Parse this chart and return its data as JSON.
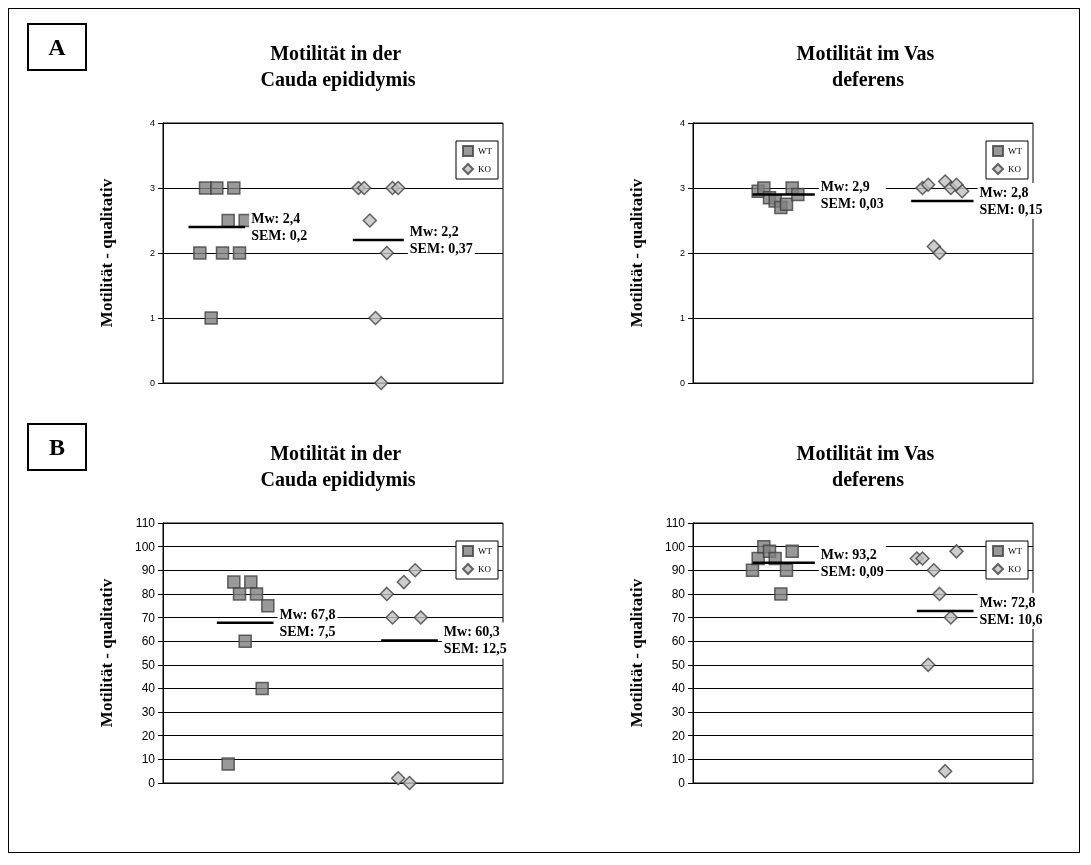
{
  "chart_data": [
    {
      "type": "scatter",
      "title": "Motilität in der Cauda epididymis",
      "ylabel": "Motilität - qualitativ",
      "categories": [
        null,
        null,
        null,
        null,
        null,
        null,
        null,
        null,
        null,
        null,
        null,
        null,
        null,
        null,
        null,
        null,
        null,
        null,
        null,
        null,
        null,
        null,
        null,
        null,
        null,
        null,
        null,
        null,
        null,
        null,
        null,
        null,
        null,
        null,
        null,
        null,
        null,
        null,
        null,
        null,
        null,
        null,
        null,
        null,
        null,
        null,
        null,
        null,
        null,
        null,
        null,
        null,
        null,
        null,
        null,
        null,
        null,
        null,
        null,
        null
      ],
      "ylim": [
        0,
        4
      ],
      "yticks": [
        0,
        1,
        2,
        3,
        4
      ],
      "grid": "y",
      "legend": "top right",
      "series": [
        {
          "name": "WT",
          "color": "#808080",
          "marker": "square",
          "values": [
            null,
            null,
            null,
            null,
            null,
            null,
            2,
            3,
            1,
            3,
            2,
            2.5,
            3,
            2,
            2.5,
            null,
            null,
            null,
            null,
            null,
            null,
            null,
            null,
            null,
            null,
            null,
            null,
            null,
            null,
            null,
            null,
            null,
            null,
            null,
            null,
            null,
            null,
            null,
            null,
            null,
            null,
            null,
            null,
            null,
            null,
            null,
            null,
            null,
            null,
            null,
            null,
            null,
            null,
            null,
            null,
            null,
            null,
            null,
            null,
            null
          ]
        },
        {
          "name": "KO",
          "color": "#c0c0c0",
          "marker": "diamond",
          "values": [
            null,
            null,
            null,
            null,
            null,
            null,
            null,
            null,
            null,
            null,
            null,
            null,
            null,
            null,
            null,
            null,
            null,
            null,
            null,
            null,
            null,
            null,
            null,
            null,
            null,
            null,
            null,
            null,
            null,
            null,
            null,
            null,
            null,
            null,
            3,
            3,
            2.5,
            1,
            0,
            2,
            3,
            3,
            null,
            null,
            null,
            null,
            null,
            null,
            null,
            null,
            null,
            null,
            null,
            null,
            null,
            null,
            null,
            null,
            null,
            null
          ]
        },
        {
          "type": "line",
          "color": "#000000",
          "values": [
            null,
            null,
            null,
            null,
            2.4,
            2.4,
            2.4,
            2.4,
            2.4,
            2.4,
            2.4,
            2.4,
            2.4,
            2.4,
            2.4,
            null,
            null,
            null,
            null,
            null,
            null,
            null,
            null,
            null,
            null,
            null,
            null,
            null,
            null,
            null,
            null,
            null,
            null,
            null,
            null,
            null,
            null,
            null,
            null,
            null,
            null,
            null,
            null,
            null,
            null,
            null,
            null,
            null,
            null,
            null,
            null,
            null,
            null,
            null,
            null,
            null,
            null,
            null,
            null,
            null
          ]
        },
        {
          "type": "line",
          "color": "#000000",
          "values": [
            null,
            null,
            null,
            null,
            null,
            null,
            null,
            null,
            null,
            null,
            null,
            null,
            null,
            null,
            null,
            null,
            null,
            null,
            null,
            null,
            null,
            null,
            null,
            null,
            null,
            null,
            null,
            null,
            null,
            null,
            null,
            null,
            null,
            2.2,
            2.2,
            2.2,
            2.2,
            2.2,
            2.2,
            2.2,
            2.2,
            2.2,
            2.2,
            null,
            null,
            null,
            null,
            null,
            null,
            null,
            null,
            null,
            null,
            null,
            null,
            null,
            null,
            null,
            null,
            null
          ]
        }
      ],
      "annotations": [
        "A",
        "Mw: 2,4\nSEM: 0,2",
        "Mw: 2,2\nSEM: 0,37"
      ]
    },
    {
      "type": "scatter",
      "title": "Motilität im Vas deferens",
      "ylabel": "Motilität - qualitativ",
      "categories": [
        null,
        null,
        null,
        null,
        null,
        null,
        null,
        null,
        null,
        null,
        null,
        null,
        null,
        null,
        null,
        null,
        null,
        null,
        null,
        null,
        null,
        null,
        null,
        null,
        null,
        null,
        null,
        null,
        null,
        null,
        null,
        null,
        null,
        null,
        null,
        null,
        null,
        null,
        null,
        null,
        null,
        null,
        null,
        null,
        null,
        null,
        null,
        null,
        null,
        null,
        null,
        null,
        null,
        null,
        null,
        null,
        null,
        null,
        null,
        null
      ],
      "ylim": [
        0,
        4
      ],
      "yticks": [
        0,
        1,
        2,
        3,
        4
      ],
      "grid": "y",
      "legend": "top right",
      "series": [
        {
          "name": "WT",
          "color": "#808080",
          "marker": "square",
          "values": [
            null,
            null,
            null,
            null,
            null,
            null,
            null,
            null,
            null,
            null,
            null,
            2.95,
            3,
            2.85,
            2.8,
            2.7,
            2.75,
            3,
            2.9,
            null,
            null,
            null,
            null,
            null,
            null,
            null,
            null,
            null,
            null,
            null,
            null,
            null,
            null,
            null,
            null,
            null,
            null,
            null,
            null,
            null,
            null,
            null,
            null,
            null,
            null,
            null,
            null,
            null,
            null,
            null,
            null,
            null,
            null,
            null,
            null,
            null,
            null,
            null,
            null,
            null
          ]
        },
        {
          "name": "KO",
          "color": "#c0c0c0",
          "marker": "diamond",
          "values": [
            null,
            null,
            null,
            null,
            null,
            null,
            null,
            null,
            null,
            null,
            null,
            null,
            null,
            null,
            null,
            null,
            null,
            null,
            null,
            null,
            null,
            null,
            null,
            null,
            null,
            null,
            null,
            null,
            null,
            null,
            null,
            null,
            null,
            null,
            null,
            null,
            null,
            null,
            null,
            null,
            3,
            3.05,
            2.1,
            2,
            3.1,
            3,
            3.05,
            2.95,
            null,
            null,
            null,
            null,
            null,
            null,
            null,
            null,
            null,
            null,
            null,
            null
          ]
        },
        {
          "type": "line",
          "color": "#000000",
          "values": [
            null,
            null,
            null,
            null,
            null,
            null,
            null,
            null,
            null,
            null,
            2.9,
            2.9,
            2.9,
            2.9,
            2.9,
            2.9,
            2.9,
            2.9,
            2.9,
            2.9,
            2.9,
            2.9,
            null,
            null,
            null,
            null,
            null,
            null,
            null,
            null,
            null,
            null,
            null,
            null,
            null,
            null,
            null,
            null,
            null,
            null,
            null,
            null,
            null,
            null,
            null,
            null,
            null,
            null,
            null,
            null,
            null,
            null,
            null,
            null,
            null,
            null,
            null,
            null,
            null,
            null
          ]
        },
        {
          "type": "line",
          "color": "#000000",
          "values": [
            null,
            null,
            null,
            null,
            null,
            null,
            null,
            null,
            null,
            null,
            null,
            null,
            null,
            null,
            null,
            null,
            null,
            null,
            null,
            null,
            null,
            null,
            null,
            null,
            null,
            null,
            null,
            null,
            null,
            null,
            null,
            null,
            null,
            null,
            null,
            null,
            null,
            null,
            2.8,
            2.8,
            2.8,
            2.8,
            2.8,
            2.8,
            2.8,
            2.8,
            2.8,
            2.8,
            2.8,
            2.8,
            null,
            null,
            null,
            null,
            null,
            null,
            null,
            null,
            null,
            null
          ]
        }
      ],
      "annotations": [
        "Mw: 2,9\nSEM: 0,03",
        "Mw: 2,8\nSEM: 0,15"
      ]
    },
    {
      "type": "scatter",
      "title": "Motilität in der Cauda epididymis",
      "ylabel": "Motilität - qualitativ",
      "categories": [
        null,
        null,
        null,
        null,
        null,
        null,
        null,
        null,
        null,
        null,
        null,
        null,
        null,
        null,
        null,
        null,
        null,
        null,
        null,
        null,
        null,
        null,
        null,
        null,
        null,
        null,
        null,
        null,
        null,
        null,
        null,
        null,
        null,
        null,
        null,
        null,
        null,
        null,
        null,
        null,
        null,
        null,
        null,
        null,
        null,
        null,
        null,
        null,
        null,
        null,
        null,
        null,
        null,
        null,
        null,
        null,
        null,
        null,
        null,
        null
      ],
      "ylim": [
        0,
        110
      ],
      "yticks": [
        0,
        10,
        20,
        30,
        40,
        50,
        60,
        70,
        80,
        90,
        100,
        110
      ],
      "grid": "y",
      "legend": "top right",
      "series": [
        {
          "name": "WT",
          "color": "#808080",
          "marker": "square",
          "values": [
            null,
            null,
            null,
            null,
            null,
            null,
            null,
            null,
            null,
            null,
            null,
            8,
            85,
            80,
            60,
            85,
            80,
            40,
            75,
            null,
            null,
            null,
            null,
            null,
            null,
            null,
            null,
            null,
            null,
            null,
            null,
            null,
            null,
            null,
            null,
            null,
            null,
            null,
            null,
            null,
            null,
            null,
            null,
            null,
            null,
            null,
            null,
            null,
            null,
            null,
            null,
            null,
            null,
            null,
            null,
            null,
            null,
            null,
            null,
            null
          ]
        },
        {
          "name": "KO",
          "color": "#c0c0c0",
          "marker": "diamond",
          "values": [
            null,
            null,
            null,
            null,
            null,
            null,
            null,
            null,
            null,
            null,
            null,
            null,
            null,
            null,
            null,
            null,
            null,
            null,
            null,
            null,
            null,
            null,
            null,
            null,
            null,
            null,
            null,
            null,
            null,
            null,
            null,
            null,
            null,
            null,
            null,
            null,
            null,
            null,
            null,
            80,
            70,
            2,
            85,
            0,
            90,
            70,
            null,
            null,
            null,
            null,
            null,
            null,
            null,
            null,
            null,
            null,
            null,
            null,
            null,
            null
          ]
        },
        {
          "type": "line",
          "color": "#000000",
          "values": [
            null,
            null,
            null,
            null,
            null,
            null,
            null,
            null,
            null,
            67.8,
            67.8,
            67.8,
            67.8,
            67.8,
            67.8,
            67.8,
            67.8,
            67.8,
            67.8,
            67.8,
            null,
            null,
            null,
            null,
            null,
            null,
            null,
            null,
            null,
            null,
            null,
            null,
            null,
            null,
            null,
            null,
            null,
            null,
            null,
            null,
            null,
            null,
            null,
            null,
            null,
            null,
            null,
            null,
            null,
            null,
            null,
            null,
            null,
            null,
            null,
            null,
            null,
            null,
            null,
            null
          ]
        },
        {
          "type": "line",
          "color": "#000000",
          "values": [
            null,
            null,
            null,
            null,
            null,
            null,
            null,
            null,
            null,
            null,
            null,
            null,
            null,
            null,
            null,
            null,
            null,
            null,
            null,
            null,
            null,
            null,
            null,
            null,
            null,
            null,
            null,
            null,
            null,
            null,
            null,
            null,
            null,
            null,
            null,
            null,
            null,
            null,
            60.3,
            60.3,
            60.3,
            60.3,
            60.3,
            60.3,
            60.3,
            60.3,
            60.3,
            60.3,
            60.3,
            null,
            null,
            null,
            null,
            null,
            null,
            null,
            null,
            null,
            null,
            null
          ]
        }
      ],
      "annotations": [
        "B",
        "Mw: 67,8\nSEM: 7,5",
        "Mw: 60,3\nSEM: 12,5"
      ]
    },
    {
      "type": "scatter",
      "title": "Motilität im Vas deferens",
      "ylabel": "Motilität - qualitativ",
      "categories": [
        null,
        null,
        null,
        null,
        null,
        null,
        null,
        null,
        null,
        null,
        null,
        null,
        null,
        null,
        null,
        null,
        null,
        null,
        null,
        null,
        null,
        null,
        null,
        null,
        null,
        null,
        null,
        null,
        null,
        null,
        null,
        null,
        null,
        null,
        null,
        null,
        null,
        null,
        null,
        null,
        null,
        null,
        null,
        null,
        null,
        null,
        null,
        null,
        null,
        null,
        null,
        null,
        null,
        null,
        null,
        null,
        null,
        null,
        null,
        null
      ],
      "ylim": [
        0,
        110
      ],
      "yticks": [
        0,
        10,
        20,
        30,
        40,
        50,
        60,
        70,
        80,
        90,
        100,
        110
      ],
      "grid": "y",
      "legend": "top right",
      "series": [
        {
          "name": "WT",
          "color": "#808080",
          "marker": "square",
          "values": [
            null,
            null,
            null,
            null,
            null,
            null,
            null,
            null,
            null,
            null,
            90,
            95,
            100,
            98,
            95,
            80,
            90,
            98,
            null,
            null,
            null,
            null,
            null,
            null,
            null,
            null,
            null,
            null,
            null,
            null,
            null,
            null,
            null,
            null,
            null,
            null,
            null,
            null,
            null,
            null,
            null,
            null,
            null,
            null,
            null,
            null,
            null,
            null,
            null,
            null,
            null,
            null,
            null,
            null,
            null,
            null,
            null,
            null,
            null,
            null
          ]
        },
        {
          "name": "KO",
          "color": "#c0c0c0",
          "marker": "diamond",
          "values": [
            null,
            null,
            null,
            null,
            null,
            null,
            null,
            null,
            null,
            null,
            null,
            null,
            null,
            null,
            null,
            null,
            null,
            null,
            null,
            null,
            null,
            null,
            null,
            null,
            null,
            null,
            null,
            null,
            null,
            null,
            null,
            null,
            null,
            null,
            null,
            null,
            null,
            null,
            null,
            95,
            95,
            50,
            90,
            80,
            5,
            70,
            98,
            null,
            null,
            null,
            null,
            null,
            null,
            null,
            null,
            null,
            null,
            null,
            null,
            null
          ]
        },
        {
          "type": "line",
          "color": "#000000",
          "values": [
            null,
            null,
            null,
            null,
            null,
            null,
            null,
            null,
            null,
            null,
            93.2,
            93.2,
            93.2,
            93.2,
            93.2,
            93.2,
            93.2,
            93.2,
            93.2,
            93.2,
            93.2,
            93.2,
            null,
            null,
            null,
            null,
            null,
            null,
            null,
            null,
            null,
            null,
            null,
            null,
            null,
            null,
            null,
            null,
            null,
            null,
            null,
            null,
            null,
            null,
            null,
            null,
            null,
            null,
            null,
            null,
            null,
            null,
            null,
            null,
            null,
            null,
            null,
            null,
            null,
            null
          ]
        },
        {
          "type": "line",
          "color": "#000000",
          "values": [
            null,
            null,
            null,
            null,
            null,
            null,
            null,
            null,
            null,
            null,
            null,
            null,
            null,
            null,
            null,
            null,
            null,
            null,
            null,
            null,
            null,
            null,
            null,
            null,
            null,
            null,
            null,
            null,
            null,
            null,
            null,
            null,
            null,
            null,
            null,
            null,
            null,
            null,
            null,
            72.8,
            72.8,
            72.8,
            72.8,
            72.8,
            72.8,
            72.8,
            72.8,
            72.8,
            72.8,
            72.8,
            null,
            null,
            null,
            null,
            null,
            null,
            null,
            null,
            null,
            null
          ]
        }
      ],
      "annotations": [
        "Mw: 93,2\nSEM: 0,09",
        "Mw: 72,8\nSEM: 10,6"
      ]
    }
  ]
}
